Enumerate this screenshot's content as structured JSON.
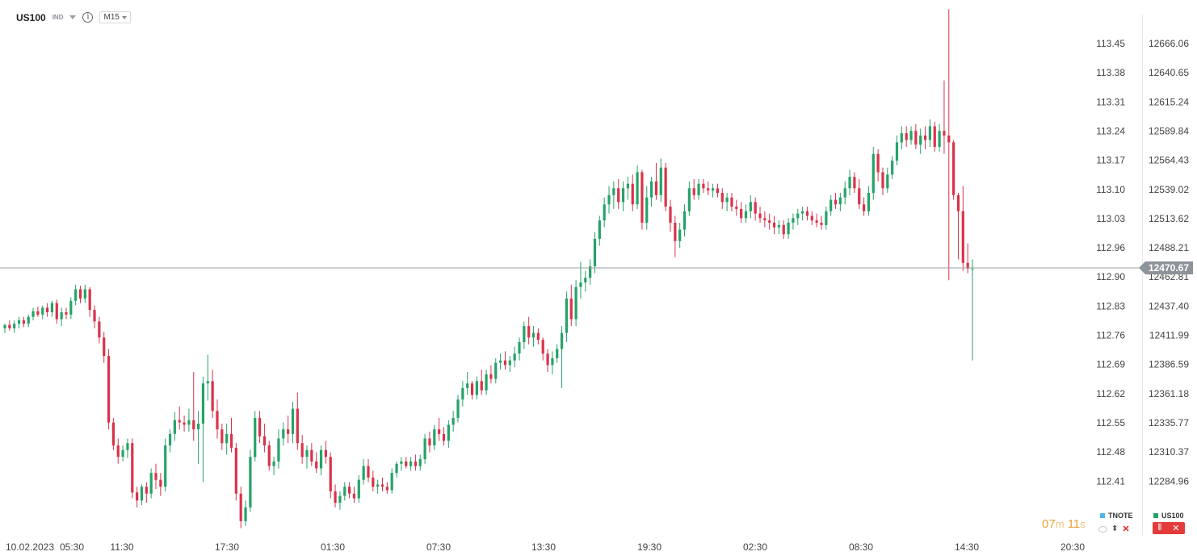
{
  "header": {
    "symbol": "US100",
    "instrument_type": "IND",
    "timeframe": "M15"
  },
  "colors": {
    "up": "#26a269",
    "down": "#d9334a",
    "price_line": "#9a9ea5",
    "price_label_bg": "#8e939a",
    "timer": "#e8a23a"
  },
  "timer": {
    "minutes": "07",
    "min_unit": "m",
    "seconds": "11",
    "sec_unit": "s"
  },
  "legend": [
    {
      "name": "TNOTE",
      "color": "#4fb6ee"
    },
    {
      "name": "US100",
      "color": "#26a269"
    }
  ],
  "chart_data": {
    "type": "candlestick",
    "title": "",
    "current_price": {
      "value": 12470.67,
      "label": "12470.67"
    },
    "left_axis": {
      "instrument": "TNOTE",
      "ticks": [
        "113.45",
        "113.38",
        "113.31",
        "113.24",
        "113.17",
        "113.10",
        "113.03",
        "112.96",
        "112.90",
        "112.83",
        "112.76",
        "112.69",
        "112.62",
        "112.55",
        "112.48",
        "112.41"
      ]
    },
    "right_axis": {
      "instrument": "US100",
      "ylim": [
        12238,
        12700
      ],
      "ticks": [
        "12666.06",
        "12640.65",
        "12615.24",
        "12589.84",
        "12564.43",
        "12539.02",
        "12513.62",
        "12488.21",
        "12462.81",
        "12437.40",
        "12411.99",
        "12386.59",
        "12361.18",
        "12335.77",
        "12310.37",
        "12284.96"
      ]
    },
    "x_axis": {
      "ticks": [
        "10.02.2023",
        "05:30",
        "11:30",
        "17:30",
        "01:30",
        "07:30",
        "13:30",
        "19:30",
        "02:30",
        "08:30",
        "14:30",
        "20:30"
      ]
    },
    "candles": [
      [
        12418,
        12422,
        12414,
        12421
      ],
      [
        12421,
        12425,
        12416,
        12418
      ],
      [
        12418,
        12425,
        12414,
        12422
      ],
      [
        12422,
        12428,
        12418,
        12425
      ],
      [
        12425,
        12428,
        12419,
        12422
      ],
      [
        12422,
        12430,
        12419,
        12428
      ],
      [
        12428,
        12436,
        12425,
        12433
      ],
      [
        12433,
        12437,
        12428,
        12430
      ],
      [
        12430,
        12438,
        12426,
        12436
      ],
      [
        12436,
        12440,
        12428,
        12432
      ],
      [
        12432,
        12442,
        12428,
        12440
      ],
      [
        12440,
        12443,
        12422,
        12426
      ],
      [
        12426,
        12436,
        12420,
        12432
      ],
      [
        12432,
        12436,
        12426,
        12430
      ],
      [
        12430,
        12445,
        12426,
        12442
      ],
      [
        12442,
        12456,
        12438,
        12452
      ],
      [
        12452,
        12455,
        12440,
        12444
      ],
      [
        12444,
        12456,
        12440,
        12452
      ],
      [
        12452,
        12454,
        12428,
        12434
      ],
      [
        12434,
        12438,
        12418,
        12424
      ],
      [
        12424,
        12428,
        12405,
        12410
      ],
      [
        12410,
        12415,
        12388,
        12394
      ],
      [
        12394,
        12400,
        12330,
        12336
      ],
      [
        12336,
        12340,
        12312,
        12316
      ],
      [
        12316,
        12322,
        12300,
        12306
      ],
      [
        12306,
        12316,
        12302,
        12312
      ],
      [
        12312,
        12322,
        12305,
        12318
      ],
      [
        12318,
        12322,
        12270,
        12275
      ],
      [
        12275,
        12280,
        12262,
        12268
      ],
      [
        12268,
        12282,
        12264,
        12280
      ],
      [
        12280,
        12284,
        12266,
        12274
      ],
      [
        12274,
        12296,
        12270,
        12292
      ],
      [
        12292,
        12300,
        12278,
        12286
      ],
      [
        12286,
        12292,
        12272,
        12280
      ],
      [
        12280,
        12322,
        12276,
        12316
      ],
      [
        12316,
        12330,
        12310,
        12326
      ],
      [
        12326,
        12345,
        12320,
        12338
      ],
      [
        12338,
        12350,
        12330,
        12336
      ],
      [
        12336,
        12342,
        12328,
        12334
      ],
      [
        12334,
        12348,
        12328,
        12338
      ],
      [
        12338,
        12380,
        12320,
        12330
      ],
      [
        12330,
        12346,
        12300,
        12335
      ],
      [
        12335,
        12376,
        12284,
        12370
      ],
      [
        12370,
        12395,
        12355,
        12372
      ],
      [
        12372,
        12382,
        12340,
        12346
      ],
      [
        12346,
        12356,
        12322,
        12330
      ],
      [
        12330,
        12335,
        12312,
        12318
      ],
      [
        12318,
        12335,
        12308,
        12326
      ],
      [
        12326,
        12340,
        12310,
        12314
      ],
      [
        12314,
        12318,
        12268,
        12274
      ],
      [
        12274,
        12280,
        12244,
        12250
      ],
      [
        12250,
        12268,
        12246,
        12262
      ],
      [
        12262,
        12312,
        12258,
        12306
      ],
      [
        12306,
        12346,
        12302,
        12340
      ],
      [
        12340,
        12346,
        12318,
        12324
      ],
      [
        12324,
        12335,
        12310,
        12316
      ],
      [
        12316,
        12320,
        12294,
        12298
      ],
      [
        12298,
        12306,
        12290,
        12302
      ],
      [
        12302,
        12330,
        12296,
        12322
      ],
      [
        12322,
        12336,
        12316,
        12330
      ],
      [
        12330,
        12342,
        12318,
        12326
      ],
      [
        12326,
        12354,
        12318,
        12348
      ],
      [
        12348,
        12362,
        12312,
        12318
      ],
      [
        12318,
        12325,
        12300,
        12306
      ],
      [
        12306,
        12316,
        12296,
        12312
      ],
      [
        12312,
        12318,
        12298,
        12302
      ],
      [
        12302,
        12310,
        12292,
        12296
      ],
      [
        12296,
        12316,
        12290,
        12312
      ],
      [
        12312,
        12320,
        12300,
        12306
      ],
      [
        12306,
        12310,
        12270,
        12276
      ],
      [
        12276,
        12282,
        12262,
        12266
      ],
      [
        12266,
        12276,
        12260,
        12272
      ],
      [
        12272,
        12284,
        12268,
        12280
      ],
      [
        12280,
        12284,
        12270,
        12274
      ],
      [
        12274,
        12280,
        12266,
        12270
      ],
      [
        12270,
        12290,
        12266,
        12286
      ],
      [
        12286,
        12304,
        12282,
        12298
      ],
      [
        12298,
        12304,
        12284,
        12288
      ],
      [
        12288,
        12294,
        12276,
        12280
      ],
      [
        12280,
        12286,
        12274,
        12282
      ],
      [
        12282,
        12288,
        12276,
        12280
      ],
      [
        12280,
        12284,
        12274,
        12277
      ],
      [
        12277,
        12296,
        12274,
        12292
      ],
      [
        12292,
        12302,
        12288,
        12300
      ],
      [
        12300,
        12306,
        12294,
        12302
      ],
      [
        12302,
        12306,
        12296,
        12298
      ],
      [
        12298,
        12306,
        12294,
        12302
      ],
      [
        12302,
        12308,
        12294,
        12298
      ],
      [
        12298,
        12308,
        12294,
        12304
      ],
      [
        12304,
        12326,
        12300,
        12322
      ],
      [
        12322,
        12328,
        12310,
        12316
      ],
      [
        12316,
        12334,
        12312,
        12330
      ],
      [
        12330,
        12340,
        12320,
        12326
      ],
      [
        12326,
        12332,
        12316,
        12320
      ],
      [
        12320,
        12338,
        12314,
        12334
      ],
      [
        12334,
        12346,
        12328,
        12340
      ],
      [
        12340,
        12360,
        12336,
        12356
      ],
      [
        12356,
        12372,
        12350,
        12366
      ],
      [
        12366,
        12380,
        12360,
        12370
      ],
      [
        12370,
        12372,
        12356,
        12360
      ],
      [
        12360,
        12376,
        12356,
        12372
      ],
      [
        12372,
        12382,
        12360,
        12364
      ],
      [
        12364,
        12382,
        12360,
        12378
      ],
      [
        12378,
        12386,
        12370,
        12374
      ],
      [
        12374,
        12392,
        12370,
        12388
      ],
      [
        12388,
        12396,
        12382,
        12390
      ],
      [
        12390,
        12398,
        12382,
        12386
      ],
      [
        12386,
        12394,
        12380,
        12390
      ],
      [
        12390,
        12402,
        12384,
        12396
      ],
      [
        12396,
        12410,
        12390,
        12406
      ],
      [
        12406,
        12424,
        12400,
        12420
      ],
      [
        12420,
        12428,
        12404,
        12410
      ],
      [
        12410,
        12420,
        12402,
        12414
      ],
      [
        12414,
        12418,
        12404,
        12408
      ],
      [
        12408,
        12410,
        12390,
        12396
      ],
      [
        12396,
        12400,
        12380,
        12386
      ],
      [
        12386,
        12398,
        12378,
        12392
      ],
      [
        12392,
        12404,
        12388,
        12400
      ],
      [
        12400,
        12420,
        12366,
        12414
      ],
      [
        12414,
        12450,
        12406,
        12444
      ],
      [
        12444,
        12456,
        12420,
        12426
      ],
      [
        12426,
        12460,
        12420,
        12454
      ],
      [
        12454,
        12476,
        12444,
        12458
      ],
      [
        12458,
        12468,
        12450,
        12462
      ],
      [
        12462,
        12478,
        12456,
        12472
      ],
      [
        12472,
        12502,
        12466,
        12496
      ],
      [
        12496,
        12516,
        12490,
        12512
      ],
      [
        12512,
        12532,
        12506,
        12526
      ],
      [
        12526,
        12542,
        12518,
        12534
      ],
      [
        12534,
        12546,
        12522,
        12540
      ],
      [
        12540,
        12548,
        12522,
        12528
      ],
      [
        12528,
        12546,
        12520,
        12540
      ],
      [
        12540,
        12550,
        12530,
        12544
      ],
      [
        12544,
        12552,
        12520,
        12526
      ],
      [
        12526,
        12560,
        12522,
        12554
      ],
      [
        12554,
        12556,
        12504,
        12510
      ],
      [
        12510,
        12542,
        12504,
        12532
      ],
      [
        12532,
        12550,
        12524,
        12546
      ],
      [
        12546,
        12562,
        12530,
        12534
      ],
      [
        12534,
        12566,
        12528,
        12558
      ],
      [
        12558,
        12562,
        12520,
        12524
      ],
      [
        12524,
        12530,
        12502,
        12510
      ],
      [
        12510,
        12516,
        12480,
        12494
      ],
      [
        12494,
        12510,
        12488,
        12504
      ],
      [
        12504,
        12526,
        12498,
        12520
      ],
      [
        12520,
        12546,
        12516,
        12540
      ],
      [
        12540,
        12548,
        12530,
        12534
      ],
      [
        12534,
        12548,
        12530,
        12544
      ],
      [
        12544,
        12548,
        12536,
        12540
      ],
      [
        12540,
        12546,
        12534,
        12538
      ],
      [
        12538,
        12544,
        12532,
        12540
      ],
      [
        12540,
        12544,
        12532,
        12536
      ],
      [
        12536,
        12540,
        12522,
        12528
      ],
      [
        12528,
        12536,
        12520,
        12532
      ],
      [
        12532,
        12536,
        12520,
        12524
      ],
      [
        12524,
        12530,
        12516,
        12522
      ],
      [
        12522,
        12528,
        12510,
        12514
      ],
      [
        12514,
        12526,
        12510,
        12520
      ],
      [
        12520,
        12534,
        12514,
        12528
      ],
      [
        12528,
        12532,
        12512,
        12518
      ],
      [
        12518,
        12524,
        12510,
        12514
      ],
      [
        12514,
        12520,
        12506,
        12512
      ],
      [
        12512,
        12518,
        12504,
        12510
      ],
      [
        12510,
        12516,
        12500,
        12506
      ],
      [
        12506,
        12512,
        12500,
        12508
      ],
      [
        12508,
        12512,
        12496,
        12500
      ],
      [
        12500,
        12514,
        12496,
        12510
      ],
      [
        12510,
        12518,
        12504,
        12514
      ],
      [
        12514,
        12522,
        12508,
        12518
      ],
      [
        12518,
        12524,
        12512,
        12520
      ],
      [
        12520,
        12524,
        12512,
        12516
      ],
      [
        12516,
        12520,
        12508,
        12512
      ],
      [
        12512,
        12518,
        12506,
        12510
      ],
      [
        12510,
        12516,
        12504,
        12508
      ],
      [
        12508,
        12524,
        12504,
        12520
      ],
      [
        12520,
        12534,
        12516,
        12530
      ],
      [
        12530,
        12536,
        12522,
        12526
      ],
      [
        12526,
        12536,
        12520,
        12532
      ],
      [
        12532,
        12546,
        12526,
        12540
      ],
      [
        12540,
        12556,
        12534,
        12550
      ],
      [
        12550,
        12554,
        12536,
        12540
      ],
      [
        12540,
        12548,
        12522,
        12526
      ],
      [
        12526,
        12532,
        12516,
        12520
      ],
      [
        12520,
        12542,
        12516,
        12536
      ],
      [
        12536,
        12576,
        12530,
        12570
      ],
      [
        12570,
        12574,
        12546,
        12554
      ],
      [
        12554,
        12558,
        12534,
        12540
      ],
      [
        12540,
        12558,
        12536,
        12552
      ],
      [
        12552,
        12568,
        12548,
        12564
      ],
      [
        12564,
        12586,
        12560,
        12580
      ],
      [
        12580,
        12594,
        12574,
        12588
      ],
      [
        12588,
        12594,
        12576,
        12582
      ],
      [
        12582,
        12594,
        12578,
        12590
      ],
      [
        12590,
        12596,
        12574,
        12578
      ],
      [
        12578,
        12592,
        12570,
        12586
      ],
      [
        12586,
        12594,
        12574,
        12582
      ],
      [
        12582,
        12600,
        12576,
        12594
      ],
      [
        12594,
        12598,
        12572,
        12576
      ],
      [
        12576,
        12596,
        12572,
        12590
      ],
      [
        12590,
        12634,
        12570,
        12586
      ],
      [
        12586,
        12696,
        12460,
        12580
      ],
      [
        12580,
        12582,
        12530,
        12534
      ],
      [
        12534,
        12536,
        12478,
        12520
      ],
      [
        12520,
        12542,
        12468,
        12475
      ],
      [
        12475,
        12492,
        12466,
        12470
      ],
      [
        12470,
        12478,
        12390,
        12470
      ]
    ]
  }
}
